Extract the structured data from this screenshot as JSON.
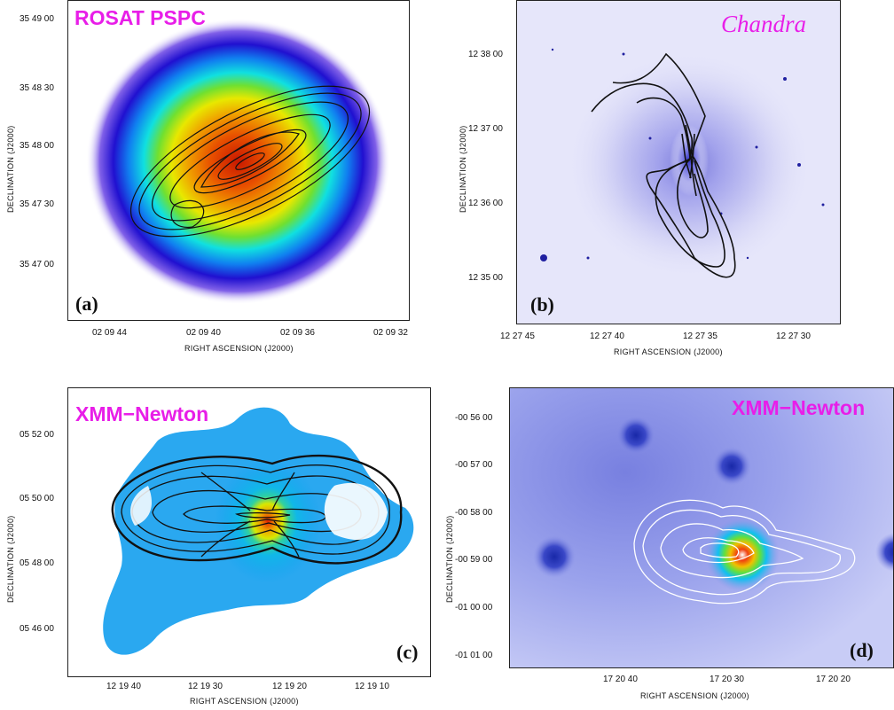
{
  "colors": {
    "title": "#e81ee8",
    "axis": "#222222",
    "contour_dark": "#111111",
    "contour_light": "#ffffff"
  },
  "panels": [
    {
      "id": "a",
      "title": "ROSAT PSPC",
      "label": "(a)",
      "xlabel": "RIGHT ASCENSION   (J2000)",
      "ylabel": "DECLINATION   (J2000)",
      "xticks": [
        "02 09 44",
        "02 09 40",
        "02 09 36",
        "02 09 32"
      ],
      "yticks": [
        "35 49 00",
        "35 48 30",
        "35 48 00",
        "35 47 30",
        "35 47 00"
      ]
    },
    {
      "id": "b",
      "title": "Chandra",
      "label": "(b)",
      "xlabel": "RIGHT ASCENSION   (J2000)",
      "ylabel": "DECLINATION   (J2000)",
      "xticks": [
        "12 27 45",
        "12 27 40",
        "12 27 35",
        "12 27 30"
      ],
      "yticks": [
        "12 38 00",
        "12 37 00",
        "12 36 00",
        "12 35 00"
      ]
    },
    {
      "id": "c",
      "title": "XMM−Newton",
      "label": "(c)",
      "xlabel": "RIGHT ASCENSION   (J2000)",
      "ylabel": "DECLINATION   (J2000)",
      "xticks": [
        "12 19 40",
        "12 19 30",
        "12 19 20",
        "12 19 10"
      ],
      "yticks": [
        "05 52 00",
        "05 50 00",
        "05 48 00",
        "05 46 00"
      ]
    },
    {
      "id": "d",
      "title": "XMM−Newton",
      "label": "(d)",
      "xlabel": "RIGHT ASCENSION   (J2000)",
      "ylabel": "DECLINATION   (J2000)",
      "xticks": [
        "17 20 40",
        "17 20 30",
        "17 20 20"
      ],
      "yticks": [
        "-00 56 00",
        "-00 57 00",
        "-00 58 00",
        "-00 59 00",
        "-01 00 00",
        "-01 01 00"
      ]
    }
  ]
}
